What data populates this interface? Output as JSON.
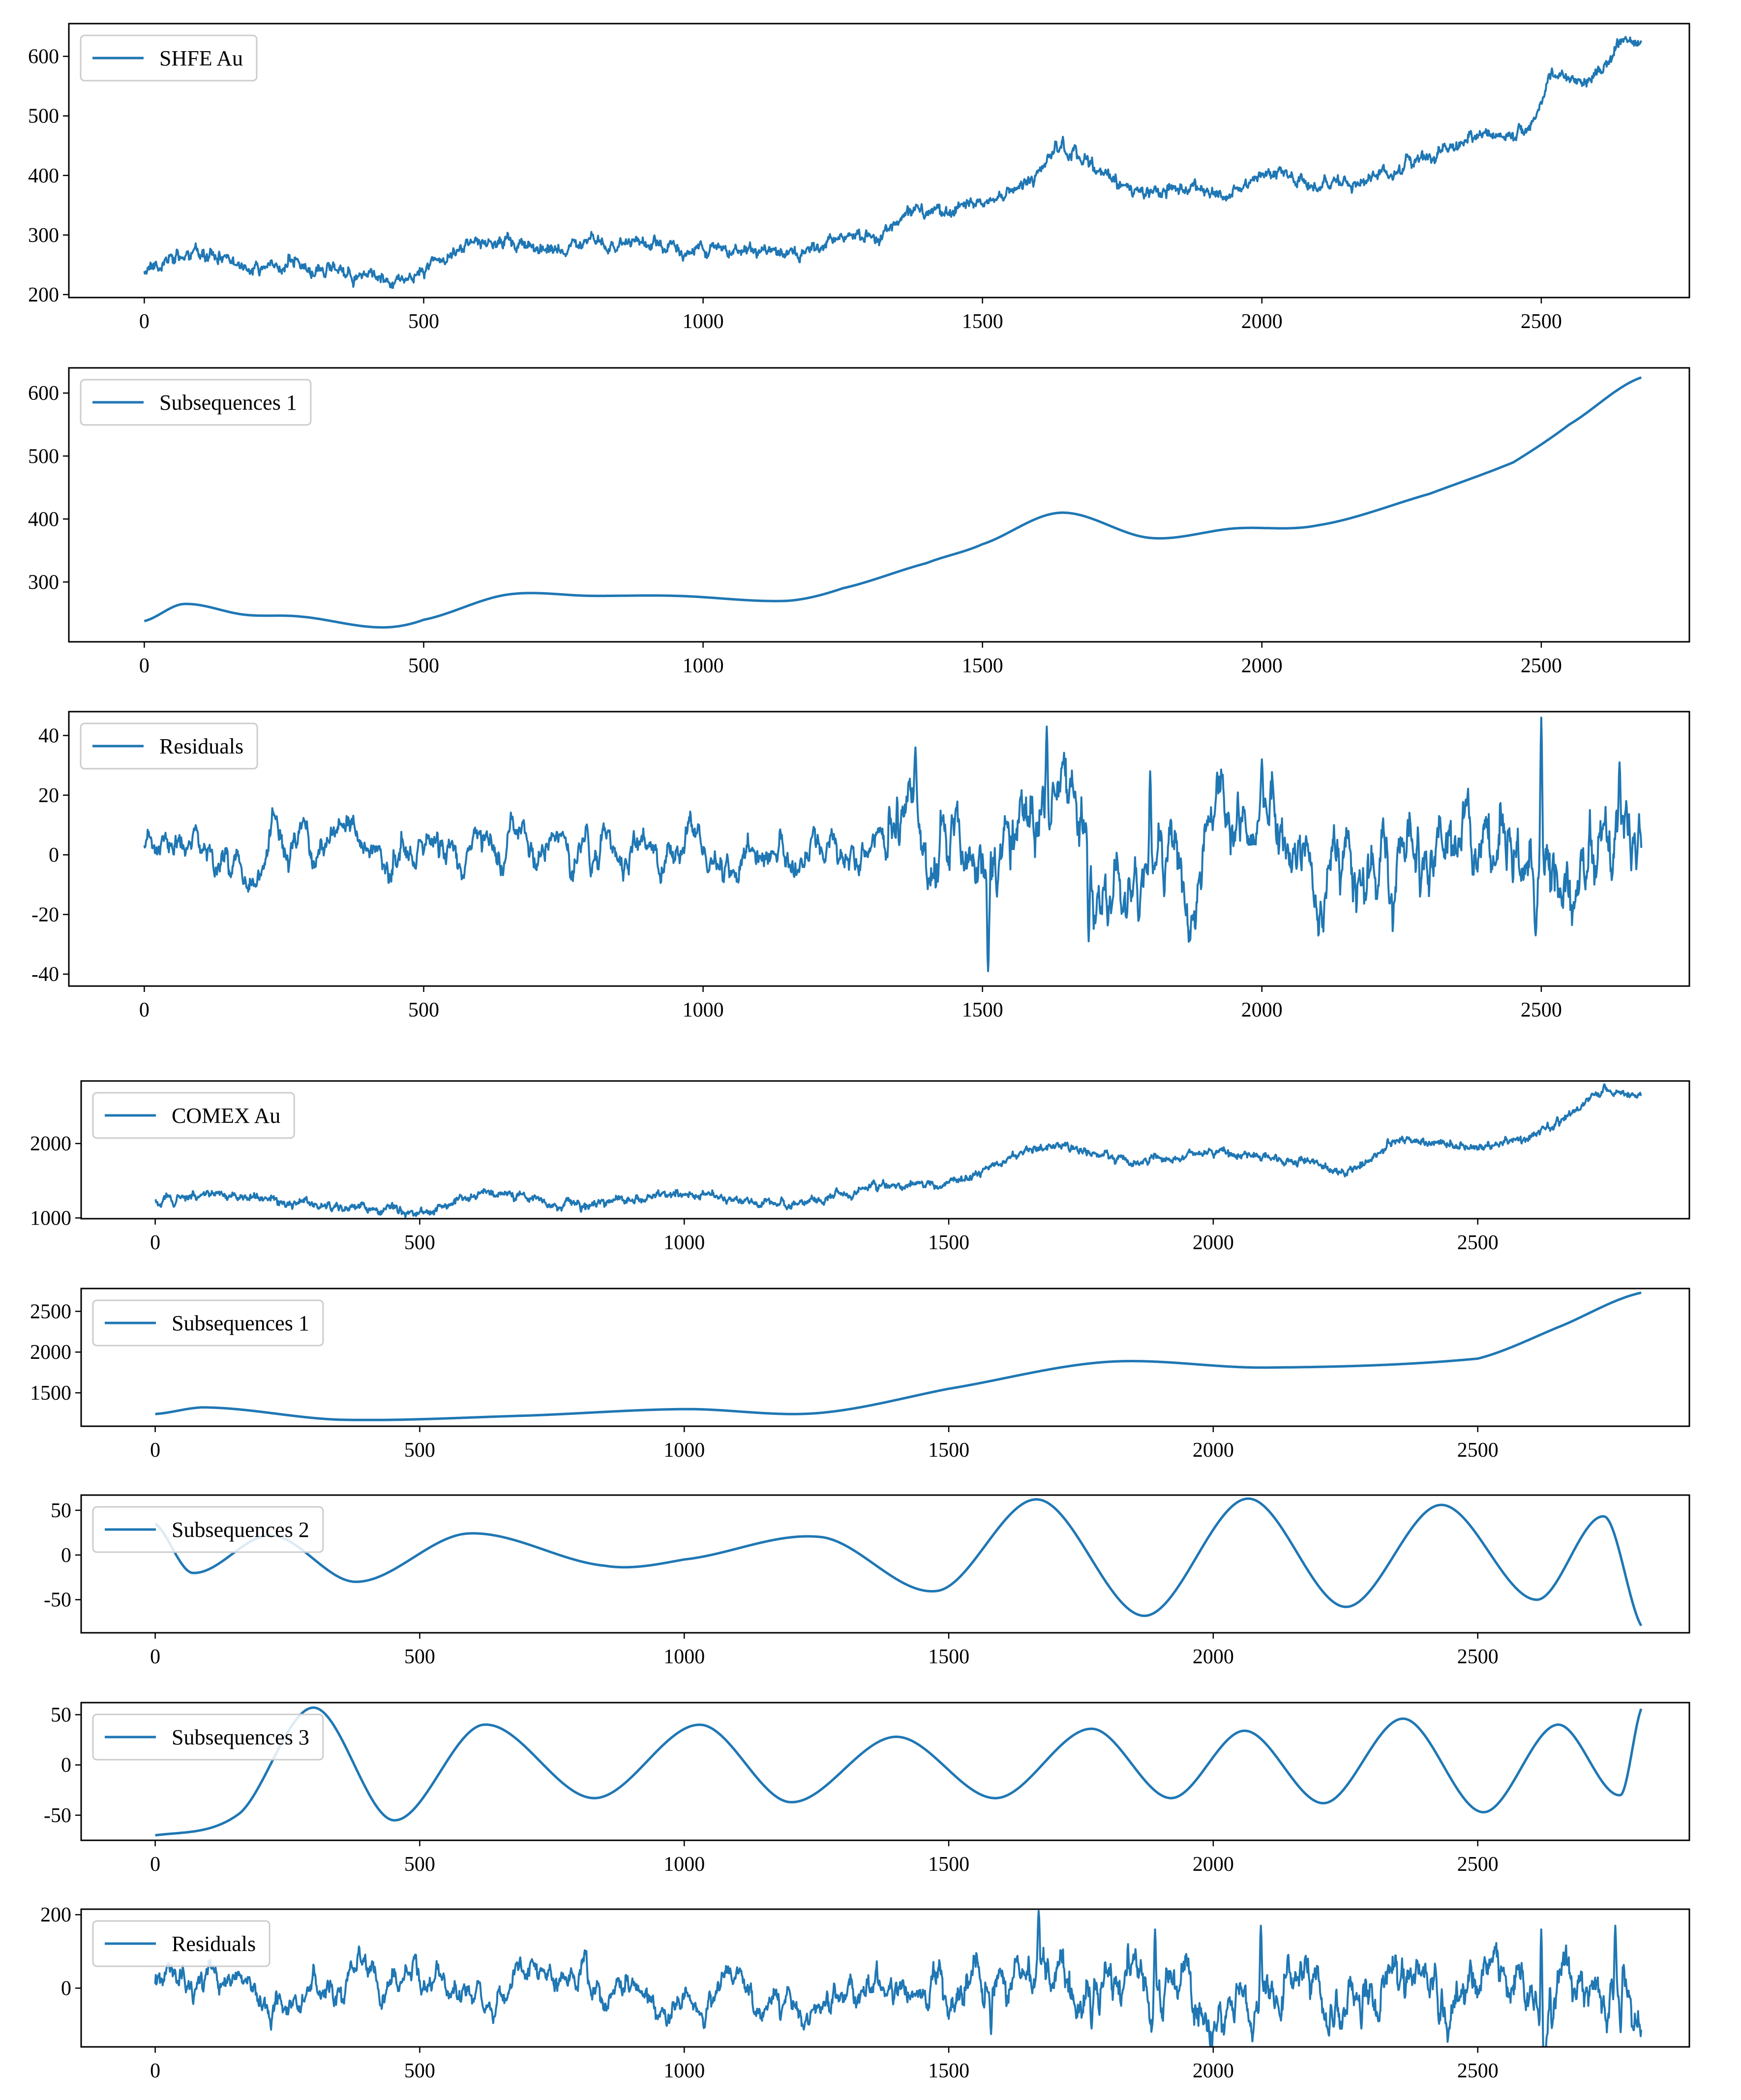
{
  "figure": {
    "description_colors": {
      "line": "#1f77b4",
      "axes": "#000000",
      "legend_border": "#cccccc",
      "background": "#ffffff"
    }
  },
  "chart_data": [
    {
      "id": "shfe-au",
      "type": "line",
      "legend": "SHFE Au",
      "legend_loc": "upper left",
      "xlim": [
        -135,
        2765
      ],
      "ylim": [
        195,
        655
      ],
      "xticks": [
        0,
        500,
        1000,
        1500,
        2000,
        2500
      ],
      "yticks": [
        200,
        300,
        400,
        500,
        600
      ],
      "n": 2680,
      "seed": 11,
      "noise": 3.5,
      "curve": {
        "x": [
          0,
          60,
          150,
          200,
          260,
          300,
          380,
          420,
          480,
          520,
          600,
          700,
          800,
          900,
          1000,
          1150,
          1250,
          1320,
          1380,
          1450,
          1520,
          1600,
          1630,
          1700,
          1780,
          1850,
          1950,
          2000,
          2080,
          2150,
          2250,
          2350,
          2450,
          2480,
          2520,
          2600,
          2640,
          2680
        ],
        "y": [
          245,
          262,
          258,
          238,
          255,
          242,
          232,
          228,
          232,
          255,
          288,
          280,
          283,
          280,
          275,
          270,
          290,
          310,
          345,
          340,
          365,
          400,
          440,
          410,
          375,
          380,
          370,
          400,
          395,
          385,
          415,
          450,
          465,
          485,
          560,
          565,
          630,
          620
        ]
      }
    },
    {
      "id": "shfe-sub1",
      "type": "line",
      "legend": "Subsequences 1",
      "legend_loc": "upper left",
      "xlim": [
        -135,
        2765
      ],
      "ylim": [
        205,
        640
      ],
      "xticks": [
        0,
        500,
        1000,
        1500,
        2000,
        2500
      ],
      "yticks": [
        300,
        400,
        500,
        600
      ],
      "n": 2680,
      "smooth": true,
      "curve": {
        "x": [
          0,
          70,
          180,
          280,
          420,
          500,
          650,
          800,
          950,
          1150,
          1250,
          1400,
          1500,
          1640,
          1800,
          1950,
          2100,
          2300,
          2450,
          2550,
          2680
        ],
        "y": [
          238,
          265,
          248,
          245,
          228,
          240,
          280,
          278,
          278,
          270,
          290,
          330,
          360,
          410,
          370,
          385,
          390,
          440,
          490,
          550,
          625
        ]
      }
    },
    {
      "id": "shfe-residuals",
      "type": "line",
      "legend": "Residuals",
      "legend_loc": "upper left",
      "xlim": [
        -135,
        2765
      ],
      "ylim": [
        -44,
        48
      ],
      "xticks": [
        0,
        500,
        1000,
        1500,
        2000,
        2500
      ],
      "yticks": [
        -40,
        -20,
        0,
        20,
        40
      ],
      "n": 2680,
      "seed": 23,
      "ou": {
        "theta": 0.06,
        "sigma_base": 1.6,
        "sigma_volatile": 3.6,
        "volatile_from": 1330
      },
      "spikes": [
        {
          "x": 1380,
          "y": 36
        },
        {
          "x": 1510,
          "y": -39
        },
        {
          "x": 1615,
          "y": 43
        },
        {
          "x": 1690,
          "y": -29
        },
        {
          "x": 1800,
          "y": 28
        },
        {
          "x": 2000,
          "y": 32
        },
        {
          "x": 2490,
          "y": -27
        },
        {
          "x": 2500,
          "y": 46
        },
        {
          "x": 2640,
          "y": 31
        }
      ]
    },
    {
      "id": "comex-au",
      "type": "line",
      "legend": "COMEX Au",
      "legend_loc": "upper left",
      "xlim": [
        -140,
        2900
      ],
      "ylim": [
        990,
        2840
      ],
      "xticks": [
        0,
        500,
        1000,
        1500,
        2000,
        2500
      ],
      "yticks": [
        1000,
        2000
      ],
      "n": 2810,
      "seed": 37,
      "noise": 18,
      "curve": {
        "x": [
          0,
          100,
          250,
          450,
          500,
          650,
          750,
          1000,
          1200,
          1400,
          1500,
          1550,
          1680,
          1850,
          2000,
          2200,
          2250,
          2350,
          2500,
          2600,
          2650,
          2750,
          2810
        ],
        "y": [
          1230,
          1330,
          1220,
          1100,
          1100,
          1330,
          1150,
          1310,
          1200,
          1450,
          1500,
          1600,
          1950,
          1780,
          1880,
          1720,
          1650,
          2000,
          1950,
          2100,
          2300,
          2700,
          2620
        ]
      }
    },
    {
      "id": "comex-sub1",
      "type": "line",
      "legend": "Subsequences 1",
      "legend_loc": "upper left",
      "xlim": [
        -140,
        2900
      ],
      "ylim": [
        1090,
        2780
      ],
      "xticks": [
        0,
        500,
        1000,
        1500,
        2000,
        2500
      ],
      "yticks": [
        1500,
        2000,
        2500
      ],
      "n": 2810,
      "smooth": true,
      "curve": {
        "x": [
          0,
          100,
          350,
          700,
          1000,
          1250,
          1500,
          1800,
          2100,
          2500,
          2650,
          2810
        ],
        "y": [
          1240,
          1320,
          1170,
          1220,
          1300,
          1250,
          1550,
          1880,
          1810,
          1920,
          2300,
          2730
        ]
      }
    },
    {
      "id": "comex-sub2",
      "type": "line",
      "legend": "Subsequences 2",
      "legend_loc": "upper left",
      "xlim": [
        -140,
        2900
      ],
      "ylim": [
        -87,
        67
      ],
      "xticks": [
        0,
        500,
        1000,
        1500,
        2000,
        2500
      ],
      "yticks": [
        -50,
        0,
        50
      ],
      "n": 2810,
      "smooth": true,
      "curve": {
        "x": [
          0,
          70,
          220,
          380,
          590,
          850,
          1000,
          1260,
          1480,
          1670,
          1870,
          2065,
          2250,
          2430,
          2610,
          2740,
          2810
        ],
        "y": [
          35,
          -20,
          22,
          -30,
          24,
          -12,
          -5,
          20,
          -40,
          62,
          -68,
          63,
          -58,
          56,
          -50,
          43,
          -80
        ]
      }
    },
    {
      "id": "comex-sub3",
      "type": "line",
      "legend": "Subsequences 3",
      "legend_loc": "upper left",
      "xlim": [
        -140,
        2900
      ],
      "ylim": [
        -75,
        62
      ],
      "xticks": [
        0,
        500,
        1000,
        1500,
        2000,
        2500
      ],
      "yticks": [
        -50,
        0,
        50
      ],
      "n": 2810,
      "smooth": true,
      "curve": {
        "x": [
          0,
          160,
          300,
          450,
          620,
          830,
          1030,
          1200,
          1400,
          1590,
          1770,
          1920,
          2060,
          2210,
          2360,
          2510,
          2650,
          2770,
          2810
        ],
        "y": [
          -70,
          -48,
          57,
          -55,
          40,
          -33,
          40,
          -37,
          28,
          -33,
          36,
          -33,
          34,
          -38,
          46,
          -47,
          40,
          -30,
          57
        ]
      }
    },
    {
      "id": "comex-residuals",
      "type": "line",
      "legend": "Residuals",
      "legend_loc": "upper left",
      "xlim": [
        -140,
        2900
      ],
      "ylim": [
        -160,
        215
      ],
      "xticks": [
        0,
        500,
        1000,
        1500,
        2000,
        2500
      ],
      "yticks": [
        0,
        200
      ],
      "n": 2810,
      "seed": 53,
      "ou": {
        "theta": 0.05,
        "sigma_base": 11,
        "sigma_volatile": 19,
        "volatile_from": 1450
      },
      "spikes": [
        {
          "x": 1580,
          "y": -125
        },
        {
          "x": 1670,
          "y": 210
        },
        {
          "x": 1770,
          "y": -110
        },
        {
          "x": 1890,
          "y": 160
        },
        {
          "x": 2090,
          "y": 170
        },
        {
          "x": 2280,
          "y": -110
        },
        {
          "x": 2620,
          "y": 160
        },
        {
          "x": 2760,
          "y": 170
        },
        {
          "x": 2770,
          "y": -120
        }
      ]
    }
  ]
}
